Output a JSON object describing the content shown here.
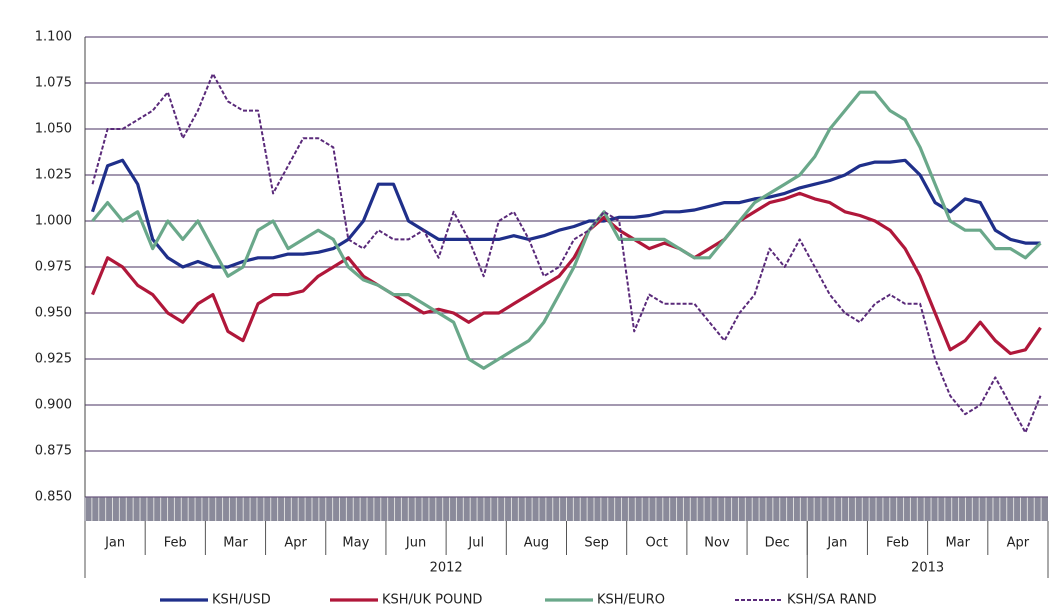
{
  "chart_data": {
    "type": "line",
    "categories": [
      "Jan",
      null,
      null,
      null,
      "Feb",
      null,
      null,
      null,
      "Mar",
      null,
      null,
      null,
      "Apr",
      null,
      null,
      null,
      "May",
      null,
      null,
      null,
      "Jun",
      null,
      null,
      null,
      "Jul",
      null,
      null,
      null,
      "Aug",
      null,
      null,
      null,
      "Sep",
      null,
      null,
      null,
      "Oct",
      null,
      null,
      null,
      "Nov",
      null,
      null,
      null,
      "Dec",
      null,
      null,
      null,
      "Jan",
      null,
      null,
      null,
      "Feb",
      null,
      null,
      null,
      "Mar",
      null,
      null,
      null,
      "Apr",
      null,
      null,
      null
    ],
    "x_groups": [
      "2012",
      "2013"
    ],
    "series": [
      {
        "name": "KSH/USD",
        "color": "#1f2f8a",
        "dashed": false,
        "values": [
          1.005,
          1.03,
          1.033,
          1.02,
          0.99,
          0.98,
          0.975,
          0.978,
          0.975,
          0.975,
          0.978,
          0.98,
          0.98,
          0.982,
          0.982,
          0.983,
          0.985,
          0.99,
          1.0,
          1.02,
          1.02,
          1.0,
          0.995,
          0.99,
          0.99,
          0.99,
          0.99,
          0.99,
          0.992,
          0.99,
          0.992,
          0.995,
          0.997,
          1.0,
          1.0,
          1.002,
          1.002,
          1.003,
          1.005,
          1.005,
          1.006,
          1.008,
          1.01,
          1.01,
          1.012,
          1.013,
          1.015,
          1.018,
          1.02,
          1.022,
          1.025,
          1.03,
          1.032,
          1.032,
          1.033,
          1.025,
          1.01,
          1.005,
          1.012,
          1.01,
          0.995,
          0.99,
          0.988,
          0.988
        ]
      },
      {
        "name": "KSH/UK POUND",
        "color": "#b0173a",
        "dashed": false,
        "values": [
          0.96,
          0.98,
          0.975,
          0.965,
          0.96,
          0.95,
          0.945,
          0.955,
          0.96,
          0.94,
          0.935,
          0.955,
          0.96,
          0.96,
          0.962,
          0.97,
          0.975,
          0.98,
          0.97,
          0.965,
          0.96,
          0.955,
          0.95,
          0.952,
          0.95,
          0.945,
          0.95,
          0.95,
          0.955,
          0.96,
          0.965,
          0.97,
          0.98,
          0.995,
          1.002,
          0.995,
          0.99,
          0.985,
          0.988,
          0.985,
          0.98,
          0.985,
          0.99,
          1.0,
          1.005,
          1.01,
          1.012,
          1.015,
          1.012,
          1.01,
          1.005,
          1.003,
          1.0,
          0.995,
          0.985,
          0.97,
          0.95,
          0.93,
          0.935,
          0.945,
          0.935,
          0.928,
          0.93,
          0.942
        ]
      },
      {
        "name": "KSH/EURO",
        "color": "#6aa88a",
        "dashed": false,
        "values": [
          1.0,
          1.01,
          1.0,
          1.005,
          0.985,
          1.0,
          0.99,
          1.0,
          0.985,
          0.97,
          0.975,
          0.995,
          1.0,
          0.985,
          0.99,
          0.995,
          0.99,
          0.975,
          0.968,
          0.965,
          0.96,
          0.96,
          0.955,
          0.95,
          0.945,
          0.925,
          0.92,
          0.925,
          0.93,
          0.935,
          0.945,
          0.96,
          0.975,
          0.995,
          1.005,
          0.99,
          0.99,
          0.99,
          0.99,
          0.985,
          0.98,
          0.98,
          0.99,
          1.0,
          1.01,
          1.015,
          1.02,
          1.025,
          1.035,
          1.05,
          1.06,
          1.07,
          1.07,
          1.06,
          1.055,
          1.04,
          1.02,
          1.0,
          0.995,
          0.995,
          0.985,
          0.985,
          0.98,
          0.988
        ]
      },
      {
        "name": "KSH/SA RAND",
        "color": "#5a2a7a",
        "dashed": true,
        "values": [
          1.02,
          1.05,
          1.05,
          1.055,
          1.06,
          1.07,
          1.045,
          1.06,
          1.08,
          1.065,
          1.06,
          1.06,
          1.015,
          1.03,
          1.045,
          1.045,
          1.04,
          0.99,
          0.985,
          0.995,
          0.99,
          0.99,
          0.995,
          0.98,
          1.005,
          0.99,
          0.97,
          1.0,
          1.005,
          0.99,
          0.97,
          0.975,
          0.99,
          0.995,
          1.005,
          1.0,
          0.94,
          0.96,
          0.955,
          0.955,
          0.955,
          0.945,
          0.935,
          0.95,
          0.96,
          0.985,
          0.975,
          0.99,
          0.975,
          0.96,
          0.95,
          0.945,
          0.955,
          0.96,
          0.955,
          0.955,
          0.925,
          0.905,
          0.895,
          0.9,
          0.915,
          0.9,
          0.885,
          0.905
        ]
      }
    ],
    "ylim": [
      0.85,
      1.1
    ],
    "yticks": [
      {
        "value": 0.85,
        "label": "0.850"
      },
      {
        "value": 0.875,
        "label": "0.875"
      },
      {
        "value": 0.9,
        "label": "0.900"
      },
      {
        "value": 0.925,
        "label": "0.925"
      },
      {
        "value": 0.95,
        "label": "0.950"
      },
      {
        "value": 0.975,
        "label": "0.975"
      },
      {
        "value": 1.0,
        "label": "1.000"
      },
      {
        "value": 1.025,
        "label": "1.025"
      },
      {
        "value": 1.05,
        "label": "1.050"
      },
      {
        "value": 1.075,
        "label": "1.075"
      },
      {
        "value": 1.1,
        "label": "1.100"
      }
    ],
    "grid": true
  }
}
